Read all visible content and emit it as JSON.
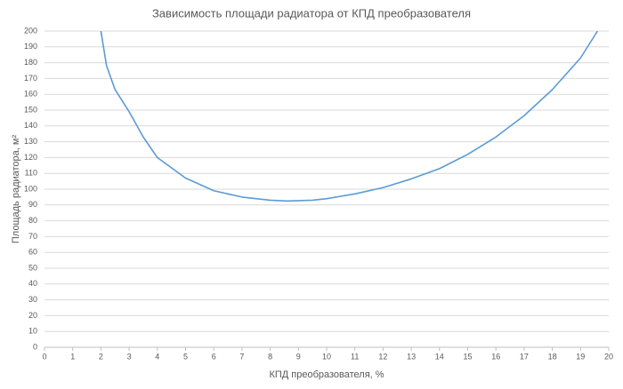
{
  "chart_data": {
    "type": "line",
    "title": "Зависимость площади радиатора от КПД преобразователя",
    "x_label": "КПД преобразователя, %",
    "y_label": "Площадь радиатора, м²",
    "series": [
      {
        "name": "Площадь радиатора",
        "color": "#5b9bd5",
        "x": [
          2,
          2.2,
          2.5,
          3,
          3.5,
          4,
          5,
          6,
          7,
          8,
          8.6,
          9.5,
          10,
          11,
          12,
          13,
          14,
          15,
          16,
          17,
          18,
          19,
          19.6
        ],
        "values": [
          200,
          178,
          163,
          149,
          133,
          120,
          107,
          99,
          95,
          93,
          92.5,
          93,
          94,
          97,
          101,
          106.5,
          113,
          122,
          133,
          146.5,
          163,
          183,
          200
        ]
      }
    ],
    "xlim": [
      0,
      20
    ],
    "xticks": [
      0,
      1,
      2,
      3,
      4,
      5,
      6,
      7,
      8,
      9,
      10,
      11,
      12,
      13,
      14,
      15,
      16,
      17,
      18,
      19,
      20
    ],
    "ylim": [
      0,
      200
    ],
    "yticks": [
      0,
      10,
      20,
      30,
      40,
      50,
      60,
      70,
      80,
      90,
      100,
      110,
      120,
      130,
      140,
      150,
      160,
      170,
      180,
      190,
      200
    ],
    "grid": true
  }
}
